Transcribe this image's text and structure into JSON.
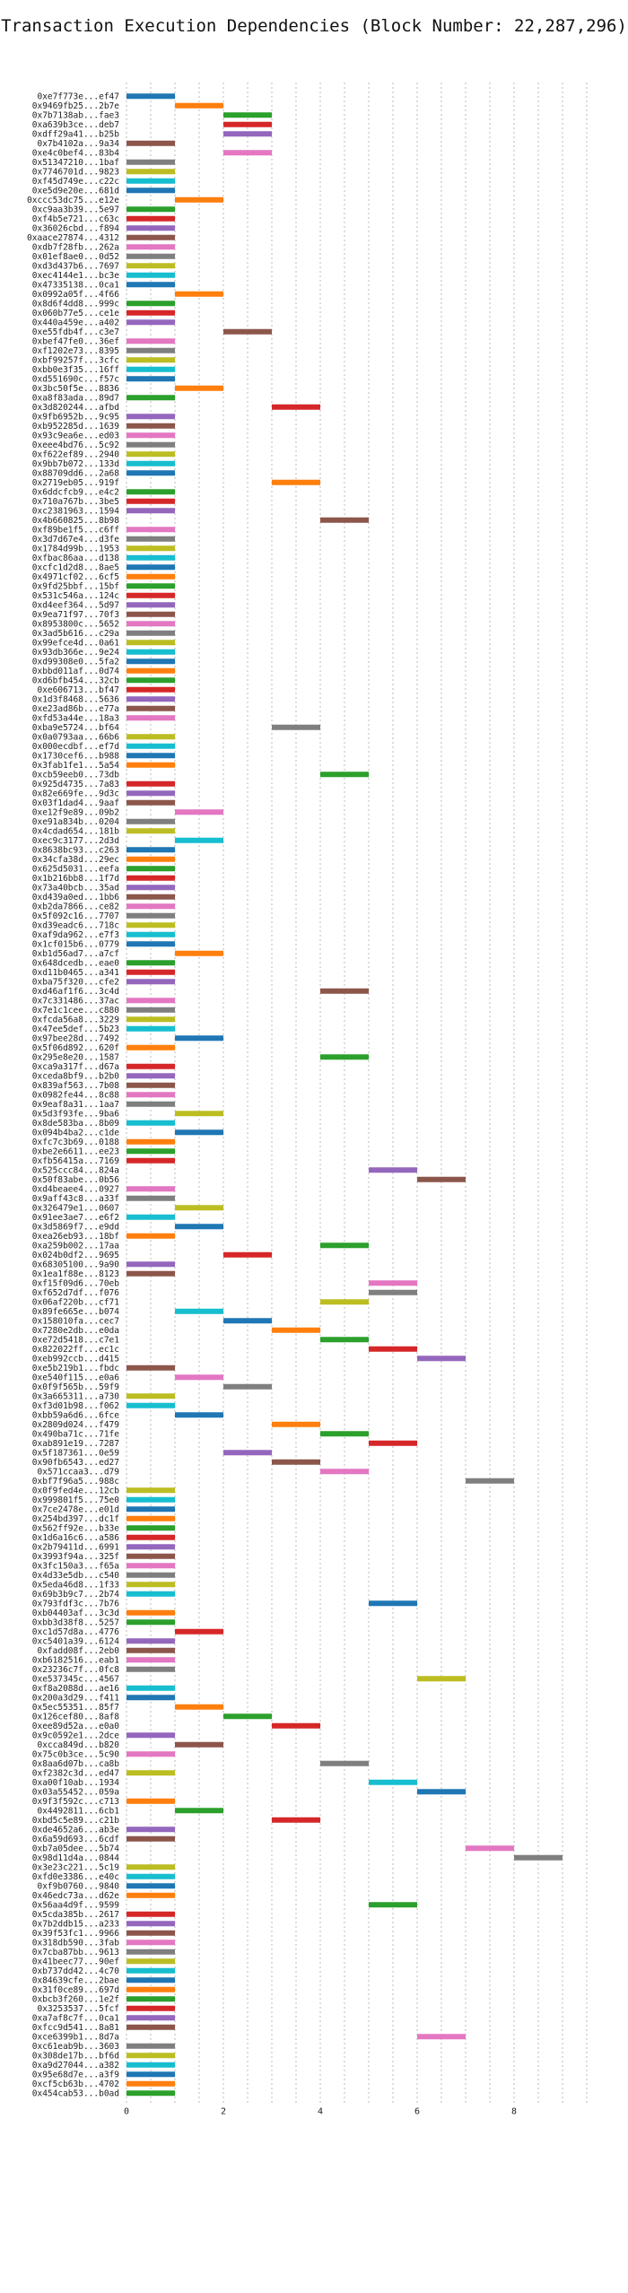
{
  "chart_data": {
    "type": "bar",
    "orientation": "horizontal",
    "style": "gantt",
    "title": "Transaction Execution Dependencies (Block Number: 22,287,296)",
    "xlim": [
      0,
      9.5
    ],
    "xticks": [
      0,
      2,
      4,
      6,
      8
    ],
    "grid": true,
    "bar_width": 1,
    "transactions": [
      [
        "0xe7f773e...ef47",
        0,
        "#1f77b4"
      ],
      [
        "0x9469fb25...2b7e",
        1,
        "#ff7f0e"
      ],
      [
        "0x7b7138ab...fae3",
        2,
        "#2ca02c"
      ],
      [
        "0xa639b3ce...deb7",
        2,
        "#d62728"
      ],
      [
        "0xdff29a41...b25b",
        2,
        "#9467bd"
      ],
      [
        "0x7b4102a...9a34",
        0,
        "#8c564b"
      ],
      [
        "0xe4c0bef4...83b4",
        2,
        "#e377c2"
      ],
      [
        "0x51347210...1baf",
        0,
        "#7f7f7f"
      ],
      [
        "0x7746701d...9823",
        0,
        "#bcbd22"
      ],
      [
        "0xf45d749e...c22c",
        0,
        "#17becf"
      ],
      [
        "0xe5d9e20e...681d",
        0,
        "#1f77b4"
      ],
      [
        "0xccc53dc75...e12e",
        1,
        "#ff7f0e"
      ],
      [
        "0xc9aa3b39...5e97",
        0,
        "#2ca02c"
      ],
      [
        "0xf4b5e721...c63c",
        0,
        "#d62728"
      ],
      [
        "0x36026cbd...f894",
        0,
        "#9467bd"
      ],
      [
        "0xaace27874...4312",
        0,
        "#8c564b"
      ],
      [
        "0xdb7f28fb...262a",
        0,
        "#e377c2"
      ],
      [
        "0x01ef8ae0...0d52",
        0,
        "#7f7f7f"
      ],
      [
        "0xd3d437b6...7697",
        0,
        "#bcbd22"
      ],
      [
        "0xec4144e1...bc3e",
        0,
        "#17becf"
      ],
      [
        "0x47335138...0ca1",
        0,
        "#1f77b4"
      ],
      [
        "0x0992a05f...4f66",
        1,
        "#ff7f0e"
      ],
      [
        "0x8d6f4dd8...999c",
        0,
        "#2ca02c"
      ],
      [
        "0x060b77e5...ce1e",
        0,
        "#d62728"
      ],
      [
        "0x440a459e...a402",
        0,
        "#9467bd"
      ],
      [
        "0xe55fdb4f...c3e7",
        2,
        "#8c564b"
      ],
      [
        "0xbef47fe0...36ef",
        0,
        "#e377c2"
      ],
      [
        "0xf1202e73...8395",
        0,
        "#7f7f7f"
      ],
      [
        "0xbf99257f...3cfc",
        0,
        "#bcbd22"
      ],
      [
        "0xbb0e3f35...16ff",
        0,
        "#17becf"
      ],
      [
        "0xd551690c...f57c",
        0,
        "#1f77b4"
      ],
      [
        "0x3bc50f5e...8836",
        1,
        "#ff7f0e"
      ],
      [
        "0xa8f83ada...89d7",
        0,
        "#2ca02c"
      ],
      [
        "0x3d820244...afbd",
        3,
        "#d62728"
      ],
      [
        "0x9fb6952b...9c95",
        0,
        "#9467bd"
      ],
      [
        "0xb952285d...1639",
        0,
        "#8c564b"
      ],
      [
        "0x93c9ea6e...ed03",
        0,
        "#e377c2"
      ],
      [
        "0xeee4bd76...5c92",
        0,
        "#7f7f7f"
      ],
      [
        "0xf622ef89...2940",
        0,
        "#bcbd22"
      ],
      [
        "0x9bb7b072...133d",
        0,
        "#17becf"
      ],
      [
        "0x88709dd6...2a68",
        0,
        "#1f77b4"
      ],
      [
        "0x2719eb05...919f",
        3,
        "#ff7f0e"
      ],
      [
        "0x6ddcfcb9...e4c2",
        0,
        "#2ca02c"
      ],
      [
        "0x710a767b...3be5",
        0,
        "#d62728"
      ],
      [
        "0xc2381963...1594",
        0,
        "#9467bd"
      ],
      [
        "0x4b660825...8b98",
        4,
        "#8c564b"
      ],
      [
        "0xf89be1f5...c6ff",
        0,
        "#e377c2"
      ],
      [
        "0x3d7d67e4...d3fe",
        0,
        "#7f7f7f"
      ],
      [
        "0x1784d99b...1953",
        0,
        "#bcbd22"
      ],
      [
        "0xfbac86aa...d138",
        0,
        "#17becf"
      ],
      [
        "0xcfc1d2d8...8ae5",
        0,
        "#1f77b4"
      ],
      [
        "0x4971cf02...6cf5",
        0,
        "#ff7f0e"
      ],
      [
        "0x9fd25bbf...15bf",
        0,
        "#2ca02c"
      ],
      [
        "0x531c546a...124c",
        0,
        "#d62728"
      ],
      [
        "0xd4eef364...5d97",
        0,
        "#9467bd"
      ],
      [
        "0x9ea71f97...70f3",
        0,
        "#8c564b"
      ],
      [
        "0x8953800c...5652",
        0,
        "#e377c2"
      ],
      [
        "0x3ad5b616...c29a",
        0,
        "#7f7f7f"
      ],
      [
        "0x99efce4d...0a61",
        0,
        "#bcbd22"
      ],
      [
        "0x93db366e...9e24",
        0,
        "#17becf"
      ],
      [
        "0xd99308e0...5fa2",
        0,
        "#1f77b4"
      ],
      [
        "0xbbd011af...0d74",
        0,
        "#ff7f0e"
      ],
      [
        "0xd6bfb454...32cb",
        0,
        "#2ca02c"
      ],
      [
        "0xe606713...bf47",
        0,
        "#d62728"
      ],
      [
        "0x1d3f8468...5636",
        0,
        "#9467bd"
      ],
      [
        "0xe23ad86b...e77a",
        0,
        "#8c564b"
      ],
      [
        "0xfd53a44e...18a3",
        0,
        "#e377c2"
      ],
      [
        "0xba9e5724...bf64",
        3,
        "#7f7f7f"
      ],
      [
        "0x0a0793aa...66b6",
        0,
        "#bcbd22"
      ],
      [
        "0x000ecdbf...ef7d",
        0,
        "#17becf"
      ],
      [
        "0x1730cef6...b988",
        0,
        "#1f77b4"
      ],
      [
        "0x3fab1fe1...5a54",
        0,
        "#ff7f0e"
      ],
      [
        "0xcb59eeb0...73db",
        4,
        "#2ca02c"
      ],
      [
        "0x925d4735...7a83",
        0,
        "#d62728"
      ],
      [
        "0x82e669fe...9d3c",
        0,
        "#9467bd"
      ],
      [
        "0x03f1dad4...9aaf",
        0,
        "#8c564b"
      ],
      [
        "0xe12f9e89...09b2",
        1,
        "#e377c2"
      ],
      [
        "0xe91a834b...0204",
        0,
        "#7f7f7f"
      ],
      [
        "0x4cdad654...181b",
        0,
        "#bcbd22"
      ],
      [
        "0xec9c3177...2d3d",
        1,
        "#17becf"
      ],
      [
        "0x8638bc93...c263",
        0,
        "#1f77b4"
      ],
      [
        "0x34cfa38d...29ec",
        0,
        "#ff7f0e"
      ],
      [
        "0x625d5031...eefa",
        0,
        "#2ca02c"
      ],
      [
        "0x1b216bb8...1f7d",
        0,
        "#d62728"
      ],
      [
        "0x73a40bcb...35ad",
        0,
        "#9467bd"
      ],
      [
        "0xd439a0ed...1bb6",
        0,
        "#8c564b"
      ],
      [
        "0xb2da7866...ce82",
        0,
        "#e377c2"
      ],
      [
        "0x5f092c16...7707",
        0,
        "#7f7f7f"
      ],
      [
        "0xd39eadc6...718c",
        0,
        "#bcbd22"
      ],
      [
        "0xaf9da962...e7f3",
        0,
        "#17becf"
      ],
      [
        "0x1cf015b6...0779",
        0,
        "#1f77b4"
      ],
      [
        "0xb1d56ad7...a7cf",
        1,
        "#ff7f0e"
      ],
      [
        "0x648dcedb...eae0",
        0,
        "#2ca02c"
      ],
      [
        "0xd11b0465...a341",
        0,
        "#d62728"
      ],
      [
        "0xba75f320...cfe2",
        0,
        "#9467bd"
      ],
      [
        "0xd46af1f6...3c4d",
        4,
        "#8c564b"
      ],
      [
        "0x7c331486...37ac",
        0,
        "#e377c2"
      ],
      [
        "0x7e1c1cee...c880",
        0,
        "#7f7f7f"
      ],
      [
        "0xfcda56a8...3229",
        0,
        "#bcbd22"
      ],
      [
        "0x47ee5def...5b23",
        0,
        "#17becf"
      ],
      [
        "0x97bee28d...7492",
        1,
        "#1f77b4"
      ],
      [
        "0x5f06d892...620f",
        0,
        "#ff7f0e"
      ],
      [
        "0x295e8e20...1587",
        4,
        "#2ca02c"
      ],
      [
        "0xca9a317f...d67a",
        0,
        "#d62728"
      ],
      [
        "0xceda8bf9...b2b0",
        0,
        "#9467bd"
      ],
      [
        "0x839af563...7b08",
        0,
        "#8c564b"
      ],
      [
        "0x0982fe44...8c88",
        0,
        "#e377c2"
      ],
      [
        "0x9eaf8a31...1aa7",
        0,
        "#7f7f7f"
      ],
      [
        "0x5d3f93fe...9ba6",
        1,
        "#bcbd22"
      ],
      [
        "0x8de583ba...8b09",
        0,
        "#17becf"
      ],
      [
        "0x094b4ba2...c1de",
        1,
        "#1f77b4"
      ],
      [
        "0xfc7c3b69...0188",
        0,
        "#ff7f0e"
      ],
      [
        "0xbe2e6611...ee23",
        0,
        "#2ca02c"
      ],
      [
        "0xfb56415a...7169",
        0,
        "#d62728"
      ],
      [
        "0x525ccc84...824a",
        5,
        "#9467bd"
      ],
      [
        "0x50f83abe...0b56",
        6,
        "#8c564b"
      ],
      [
        "0xd4beaee4...0927",
        0,
        "#e377c2"
      ],
      [
        "0x9aff43c8...a33f",
        0,
        "#7f7f7f"
      ],
      [
        "0x326479e1...0607",
        1,
        "#bcbd22"
      ],
      [
        "0x91ee3ae7...e6f2",
        0,
        "#17becf"
      ],
      [
        "0x3d5869f7...e9dd",
        1,
        "#1f77b4"
      ],
      [
        "0xea26eb93...18bf",
        0,
        "#ff7f0e"
      ],
      [
        "0xa259b002...17aa",
        4,
        "#2ca02c"
      ],
      [
        "0x024b0df2...9695",
        2,
        "#d62728"
      ],
      [
        "0x68305100...9a90",
        0,
        "#9467bd"
      ],
      [
        "0x1ea1f88e...8123",
        0,
        "#8c564b"
      ],
      [
        "0xf15f09d6...70eb",
        5,
        "#e377c2"
      ],
      [
        "0xf652d7df...f076",
        5,
        "#7f7f7f"
      ],
      [
        "0x06af220b...cf71",
        4,
        "#bcbd22"
      ],
      [
        "0x89fe665e...b074",
        1,
        "#17becf"
      ],
      [
        "0x158010fa...cec7",
        2,
        "#1f77b4"
      ],
      [
        "0x7280e2db...e0da",
        3,
        "#ff7f0e"
      ],
      [
        "0xe72d5418...c7e1",
        4,
        "#2ca02c"
      ],
      [
        "0x822022ff...ec1c",
        5,
        "#d62728"
      ],
      [
        "0xeb992ccb...d415",
        6,
        "#9467bd"
      ],
      [
        "0xe5b219b1...fbdc",
        0,
        "#8c564b"
      ],
      [
        "0xe540f115...e0a6",
        1,
        "#e377c2"
      ],
      [
        "0x0f9f565b...59f9",
        2,
        "#7f7f7f"
      ],
      [
        "0x3a665311...a730",
        0,
        "#bcbd22"
      ],
      [
        "0xf3d01b98...f062",
        0,
        "#17becf"
      ],
      [
        "0xbb59a6d6...6fce",
        1,
        "#1f77b4"
      ],
      [
        "0x2809d024...f479",
        3,
        "#ff7f0e"
      ],
      [
        "0x490ba71c...71fe",
        4,
        "#2ca02c"
      ],
      [
        "0xab891e19...7287",
        5,
        "#d62728"
      ],
      [
        "0x5f187361...0e59",
        2,
        "#9467bd"
      ],
      [
        "0x90fb6543...ed27",
        3,
        "#8c564b"
      ],
      [
        "0x571ccaa3...d79",
        4,
        "#e377c2"
      ],
      [
        "0xbf7f96a5...988c",
        7,
        "#7f7f7f"
      ],
      [
        "0x0f9fed4e...12cb",
        0,
        "#bcbd22"
      ],
      [
        "0x999801f5...75e0",
        0,
        "#17becf"
      ],
      [
        "0x7ce2478e...e01d",
        0,
        "#1f77b4"
      ],
      [
        "0x254bd397...dc1f",
        0,
        "#ff7f0e"
      ],
      [
        "0x562ff92e...b33e",
        0,
        "#2ca02c"
      ],
      [
        "0x1d6a16c6...a586",
        0,
        "#d62728"
      ],
      [
        "0x2b79411d...6991",
        0,
        "#9467bd"
      ],
      [
        "0x3993f94a...325f",
        0,
        "#8c564b"
      ],
      [
        "0x3fc150a3...f65a",
        0,
        "#e377c2"
      ],
      [
        "0x4d33e5db...c540",
        0,
        "#7f7f7f"
      ],
      [
        "0x5eda46d8...1f33",
        0,
        "#bcbd22"
      ],
      [
        "0x69b3b9c7...2b74",
        0,
        "#17becf"
      ],
      [
        "0x793fdf3c...7b76",
        5,
        "#1f77b4"
      ],
      [
        "0xb04403af...3c3d",
        0,
        "#ff7f0e"
      ],
      [
        "0xbb3d38f8...5257",
        0,
        "#2ca02c"
      ],
      [
        "0xc1d57d8a...4776",
        1,
        "#d62728"
      ],
      [
        "0xc5401a39...6124",
        0,
        "#9467bd"
      ],
      [
        "0xfadd08f...2eb0",
        0,
        "#8c564b"
      ],
      [
        "0xb6182516...eab1",
        0,
        "#e377c2"
      ],
      [
        "0x23236c7f...0fc8",
        0,
        "#7f7f7f"
      ],
      [
        "0xe537345c...4567",
        6,
        "#bcbd22"
      ],
      [
        "0xf8a2088d...ae16",
        0,
        "#17becf"
      ],
      [
        "0x200a3d29...f411",
        0,
        "#1f77b4"
      ],
      [
        "0x5ec55351...85f7",
        1,
        "#ff7f0e"
      ],
      [
        "0x126cef80...8af8",
        2,
        "#2ca02c"
      ],
      [
        "0xee89d52a...e0a0",
        3,
        "#d62728"
      ],
      [
        "0x9c0592e1...2dce",
        0,
        "#9467bd"
      ],
      [
        "0xcca849d...b820",
        1,
        "#8c564b"
      ],
      [
        "0x75c0b3ce...5c90",
        0,
        "#e377c2"
      ],
      [
        "0x8aa6d07b...ca8b",
        4,
        "#7f7f7f"
      ],
      [
        "0xf2382c3d...ed47",
        0,
        "#bcbd22"
      ],
      [
        "0xa00f10ab...1934",
        5,
        "#17becf"
      ],
      [
        "0x03a55452...059a",
        6,
        "#1f77b4"
      ],
      [
        "0x9f3f592c...c713",
        0,
        "#ff7f0e"
      ],
      [
        "0x4492811...6cb1",
        1,
        "#2ca02c"
      ],
      [
        "0xbd5c5e89...c21b",
        3,
        "#d62728"
      ],
      [
        "0xde4652a6...ab3e",
        0,
        "#9467bd"
      ],
      [
        "0x6a59d693...6cdf",
        0,
        "#8c564b"
      ],
      [
        "0xb7a05dee...5b74",
        7,
        "#e377c2"
      ],
      [
        "0x98d11d4a...0844",
        8,
        "#7f7f7f"
      ],
      [
        "0x3e23c221...5c19",
        0,
        "#bcbd22"
      ],
      [
        "0xfd0e3386...e40c",
        0,
        "#17becf"
      ],
      [
        "0xf9b0760...9840",
        0,
        "#1f77b4"
      ],
      [
        "0x46edc73a...d62e",
        0,
        "#ff7f0e"
      ],
      [
        "0x56aa4d9f...9599",
        5,
        "#2ca02c"
      ],
      [
        "0x5cda385b...2617",
        0,
        "#d62728"
      ],
      [
        "0x7b2ddb15...a233",
        0,
        "#9467bd"
      ],
      [
        "0x39f53fc1...9966",
        0,
        "#8c564b"
      ],
      [
        "0x318db590...3fab",
        0,
        "#e377c2"
      ],
      [
        "0x7cba87bb...9613",
        0,
        "#7f7f7f"
      ],
      [
        "0x41beec77...90ef",
        0,
        "#bcbd22"
      ],
      [
        "0xb737dd42...4c70",
        0,
        "#17becf"
      ],
      [
        "0x84639cfe...2bae",
        0,
        "#1f77b4"
      ],
      [
        "0x31f0ce89...697d",
        0,
        "#ff7f0e"
      ],
      [
        "0xbcb3f260...1e2f",
        0,
        "#2ca02c"
      ],
      [
        "0x3253537...5fcf",
        0,
        "#d62728"
      ],
      [
        "0xa7af8c7f...0ca1",
        0,
        "#9467bd"
      ],
      [
        "0xfcc9d541...8a81",
        0,
        "#8c564b"
      ],
      [
        "0xce6399b1...8d7a",
        6,
        "#e377c2"
      ],
      [
        "0xc61eab9b...3603",
        0,
        "#7f7f7f"
      ],
      [
        "0x308de17b...bf6d",
        0,
        "#bcbd22"
      ],
      [
        "0xa9d27044...a382",
        0,
        "#17becf"
      ],
      [
        "0x95e68d7e...a3f9",
        0,
        "#1f77b4"
      ],
      [
        "0xcf5cb63b...4702",
        0,
        "#ff7f0e"
      ],
      [
        "0x454cab53...b0ad",
        0,
        "#2ca02c"
      ]
    ]
  }
}
